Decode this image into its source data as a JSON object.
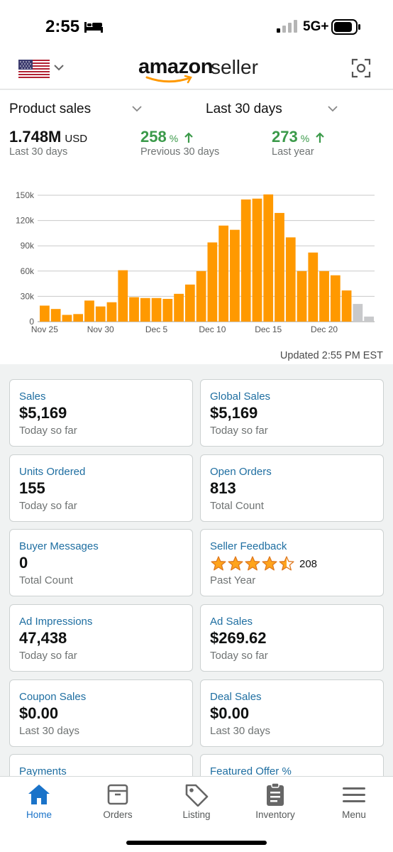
{
  "status_bar": {
    "time": "2:55",
    "network": "5G+"
  },
  "header": {
    "logo_amazon": "amazon",
    "logo_seller": "seller"
  },
  "sales": {
    "metric_dropdown": "Product sales",
    "range_dropdown": "Last 30 days",
    "total": "1.748M",
    "total_unit": "USD",
    "total_sub": "Last 30 days",
    "prev_pct": "258",
    "prev_sub": "Previous 30 days",
    "year_pct": "273",
    "year_sub": "Last year",
    "pct_symbol": "%",
    "updated": "Updated 2:55 PM EST",
    "colors": {
      "positive": "#3b9a4a",
      "bar": "#ff9900",
      "bar_pending": "#c8c9cb"
    }
  },
  "chart_data": {
    "type": "bar",
    "title": "",
    "xlabel": "",
    "ylabel": "",
    "ylim": [
      0,
      150000
    ],
    "y_ticks": [
      0,
      30000,
      60000,
      90000,
      120000,
      150000
    ],
    "y_tick_labels": [
      "0",
      "30k",
      "60k",
      "90k",
      "120k",
      "150k"
    ],
    "x_tick_labels": [
      "Nov 25",
      "Nov 30",
      "Dec 5",
      "Dec 10",
      "Dec 15",
      "Dec 20"
    ],
    "x_tick_indices": [
      0,
      5,
      10,
      15,
      20,
      25
    ],
    "categories": [
      "Nov 25",
      "Nov 26",
      "Nov 27",
      "Nov 28",
      "Nov 29",
      "Nov 30",
      "Dec 1",
      "Dec 2",
      "Dec 3",
      "Dec 4",
      "Dec 5",
      "Dec 6",
      "Dec 7",
      "Dec 8",
      "Dec 9",
      "Dec 10",
      "Dec 11",
      "Dec 12",
      "Dec 13",
      "Dec 14",
      "Dec 15",
      "Dec 16",
      "Dec 17",
      "Dec 18",
      "Dec 19",
      "Dec 20",
      "Dec 21",
      "Dec 22",
      "Dec 23",
      "Dec 24"
    ],
    "values": [
      19000,
      15000,
      8000,
      9000,
      25000,
      18000,
      23000,
      61000,
      29000,
      28000,
      28000,
      27000,
      33000,
      44000,
      60000,
      94000,
      114000,
      109000,
      145000,
      146000,
      151000,
      129000,
      100000,
      60000,
      82000,
      60000,
      55000,
      37000,
      21000,
      6000
    ],
    "pending_from_index": 28,
    "grid": true
  },
  "cards": [
    {
      "title": "Sales",
      "value": "$5,169",
      "sub": "Today so far"
    },
    {
      "title": "Global Sales",
      "value": "$5,169",
      "sub": "Today so far"
    },
    {
      "title": "Units Ordered",
      "value": "155",
      "sub": "Today so far"
    },
    {
      "title": "Open Orders",
      "value": "813",
      "sub": "Total Count"
    },
    {
      "title": "Buyer Messages",
      "value": "0",
      "sub": "Total Count"
    },
    {
      "title": "Seller Feedback",
      "rating": 4.5,
      "rating_count": "208",
      "sub": "Past Year"
    },
    {
      "title": "Ad Impressions",
      "value": "47,438",
      "sub": "Today so far"
    },
    {
      "title": "Ad Sales",
      "value": "$269.62",
      "sub": "Today so far"
    },
    {
      "title": "Coupon Sales",
      "value": "$0.00",
      "sub": "Last 30 days"
    },
    {
      "title": "Deal Sales",
      "value": "$0.00",
      "sub": "Last 30 days"
    },
    {
      "title": "Payments"
    },
    {
      "title": "Featured Offer %"
    }
  ],
  "tabs": [
    {
      "label": "Home",
      "icon": "home-icon",
      "active": true
    },
    {
      "label": "Orders",
      "icon": "orders-box-icon"
    },
    {
      "label": "Listing",
      "icon": "tag-icon"
    },
    {
      "label": "Inventory",
      "icon": "clipboard-icon"
    },
    {
      "label": "Menu",
      "icon": "hamburger-menu-icon"
    }
  ]
}
